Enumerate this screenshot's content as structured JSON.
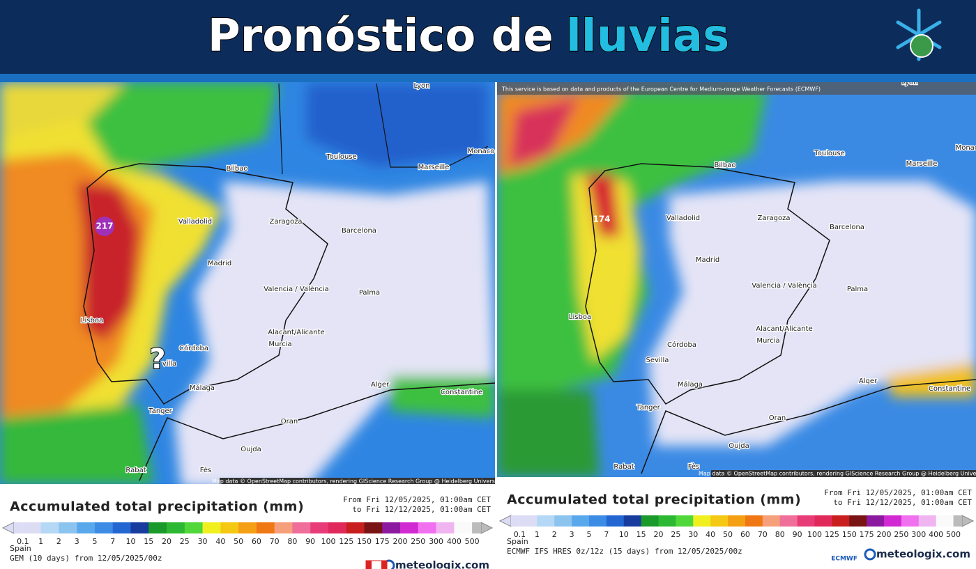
{
  "header": {
    "title_part1": "Pronóstico de",
    "title_part2": "lluvias"
  },
  "scale": {
    "labels": [
      0.1,
      1,
      2,
      3,
      5,
      7,
      10,
      15,
      20,
      25,
      30,
      40,
      50,
      60,
      70,
      80,
      90,
      100,
      125,
      150,
      175,
      200,
      250,
      300,
      400,
      500
    ],
    "colors": [
      "#dcdcf5",
      "#b4d8f5",
      "#8cc4f0",
      "#5aa8ec",
      "#3c8ce6",
      "#2366d1",
      "#173c9e",
      "#1a9a2a",
      "#2cb832",
      "#50d83a",
      "#f0f020",
      "#f5c814",
      "#f5a014",
      "#f07814",
      "#f5a07a",
      "#f06e9a",
      "#e83c78",
      "#e0285a",
      "#c81e1e",
      "#7a1414",
      "#8c1aa0",
      "#d22ad2",
      "#f070f0",
      "#f0b4f0",
      "#fafafa"
    ]
  },
  "maps": [
    {
      "notice": null,
      "max_label": "217",
      "annotation": "?",
      "attribution": "Map data © OpenStreetMap contributors, rendering GIScience Research Group @ Heidelberg University",
      "cities": [
        "Lyon",
        "Toulouse",
        "Monaco",
        "Bilbao",
        "Marseille",
        "Valladolid",
        "Zaragoza",
        "Barcelona",
        "Madrid",
        "Valencia / València",
        "Palma",
        "Lisboa",
        "Alacant/Alicante",
        "Murcia",
        "Córdoba",
        "villa",
        "Málaga",
        "Alger",
        "Constantine",
        "Tanger",
        "Oran",
        "Oujda",
        "Rabat",
        "Fès"
      ],
      "legend": {
        "title": "Accumulated total precipitation (mm)",
        "from": "From Fri 12/05/2025, 01:00am CET",
        "to": "to Fri 12/12/2025, 01:00am CET",
        "region": "Spain",
        "model": "GEM (10 days) from 12/05/2025/00z",
        "brand": "meteologix.com",
        "agency": null
      }
    },
    {
      "notice": "This service is based on data and products of the European Centre for Medium-range Weather Forecasts (ECMWF)",
      "max_label": "174",
      "annotation": null,
      "attribution": "Map data © OpenStreetMap contributors, rendering GIScience Research Group @ Heidelberg University",
      "cities": [
        "Lyon",
        "Toulouse",
        "Monaco",
        "Bilbao",
        "Marseille",
        "Valladolid",
        "Zaragoza",
        "Barcelona",
        "Madrid",
        "Valencia / València",
        "Palma",
        "Lisboa",
        "Alacant/Alicante",
        "Murcia",
        "Córdoba",
        "Sevilla",
        "Málaga",
        "Alger",
        "Constantine",
        "Tanger",
        "Oran",
        "Oujda",
        "Rabat",
        "Fès"
      ],
      "legend": {
        "title": "Accumulated total precipitation (mm)",
        "from": "From Fri 12/05/2025, 01:00am CET",
        "to": "to Fri 12/12/2025, 01:00am CET",
        "region": "Spain",
        "model": "ECMWF IFS HRES 0z/12z (15 days) from 12/05/2025/00z",
        "brand": "meteologix.com",
        "agency": "ECMWF"
      }
    }
  ]
}
